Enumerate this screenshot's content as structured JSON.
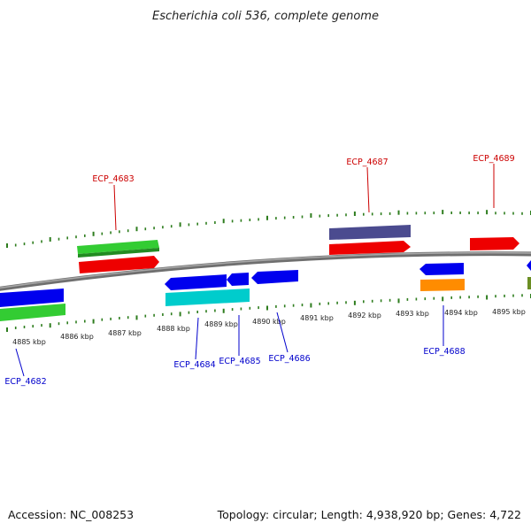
{
  "title": "Escherichia coli 536, complete genome",
  "footer": {
    "accession": "Accession: NC_008253",
    "topology": "Topology: circular; Length: 4,938,920 bp; Genes: 4,722"
  },
  "colors": {
    "backbone": "#8a8a8a",
    "tick": "#2e7d1e",
    "forward_label": "#cc0000",
    "reverse_label": "#0000cc",
    "red": "#ee0000",
    "blue": "#0000ee",
    "green": "#33cc33",
    "dark_green": "#2e8b2e",
    "cyan": "#00cccc",
    "purple": "#4b4b8f",
    "orange": "#ff8c00",
    "olive": "#6b8e23"
  },
  "scale_labels": [
    "4885 kbp",
    "4886 kbp",
    "4887 kbp",
    "4888 kbp",
    "4889 kbp",
    "4890 kbp",
    "4891 kbp",
    "4892 kbp",
    "4893 kbp",
    "4894 kbp",
    "4895 kbp"
  ],
  "gene_labels": {
    "forward": [
      "ECP_4683",
      "ECP_4687",
      "ECP_4689"
    ],
    "reverse": [
      "ECP_4682",
      "ECP_4684",
      "ECP_4685",
      "ECP_4686",
      "ECP_4688"
    ]
  }
}
